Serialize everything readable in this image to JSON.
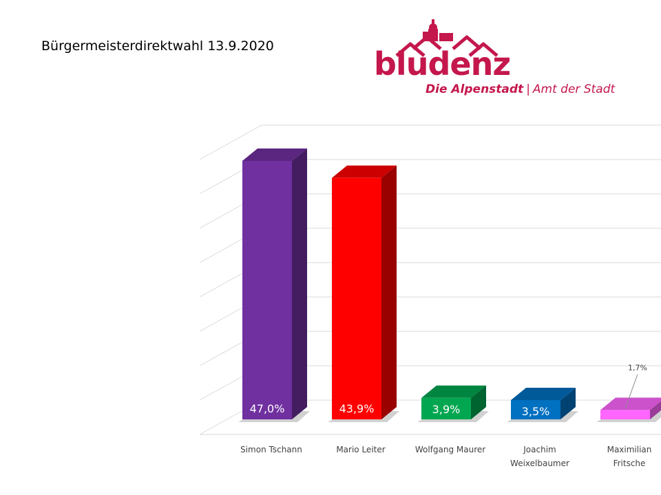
{
  "page": {
    "title": "Bürgermeisterdirektwahl 13.9.2020"
  },
  "logo": {
    "wordmark": "bludenz",
    "tagline_bold": "Die Alpenstadt",
    "tagline_sep": "|",
    "tagline_rest": "Amt der Stadt",
    "color": "#c4174c"
  },
  "chart_data": {
    "type": "bar",
    "title": "",
    "categories": [
      "Simon Tschann",
      "Mario Leiter",
      "Wolfgang Maurer",
      "Joachim Weixelbaumer",
      "Maximilian Fritsche"
    ],
    "category_lines": [
      [
        "Simon Tschann"
      ],
      [
        "Mario Leiter"
      ],
      [
        "Wolfgang Maurer"
      ],
      [
        "Joachim",
        "Weixelbaumer"
      ],
      [
        "Maximilian",
        "Fritsche"
      ]
    ],
    "values": [
      47.0,
      43.9,
      3.9,
      3.5,
      1.7
    ],
    "value_labels": [
      "47,0%",
      "43,9%",
      "3,9%",
      "3,5%",
      "1,7%"
    ],
    "colors": [
      "#7030a0",
      "#ff0000",
      "#00a650",
      "#0070c0",
      "#ff66ff"
    ],
    "ylim": [
      0,
      50
    ],
    "grid": true,
    "three_d": true,
    "xlabel": "",
    "ylabel": ""
  }
}
